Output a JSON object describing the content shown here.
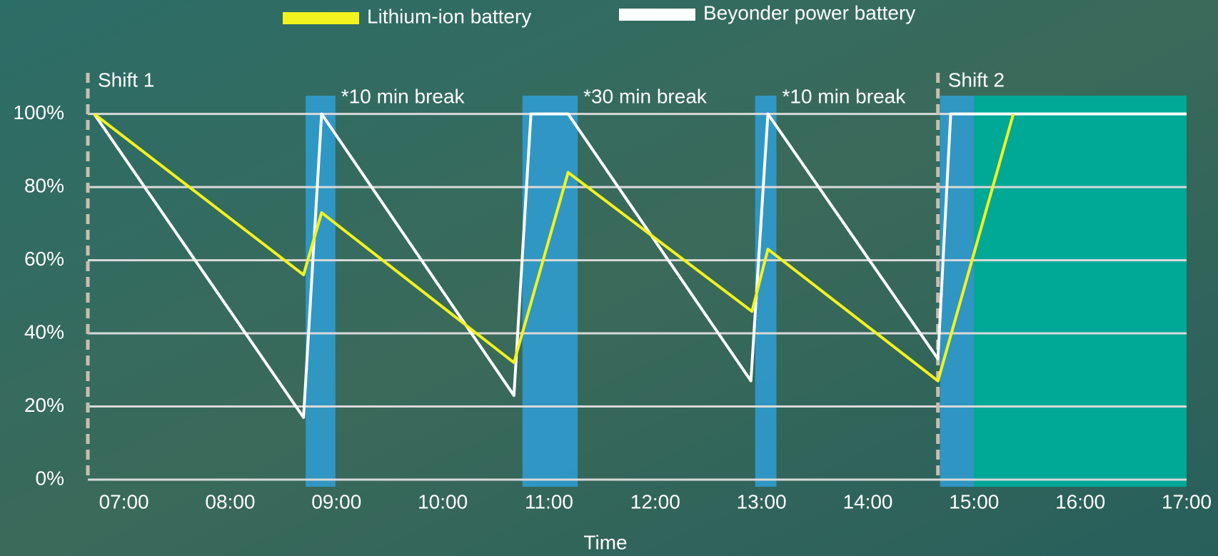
{
  "chart_data": {
    "type": "line",
    "xlabel": "Time",
    "xlim": [
      6.66,
      17
    ],
    "xticks": [
      {
        "value": 7,
        "label": "07:00"
      },
      {
        "value": 8,
        "label": "08:00"
      },
      {
        "value": 9,
        "label": "09:00"
      },
      {
        "value": 10,
        "label": "10:00"
      },
      {
        "value": 11,
        "label": "11:00"
      },
      {
        "value": 12,
        "label": "12:00"
      },
      {
        "value": 13,
        "label": "13:00"
      },
      {
        "value": 14,
        "label": "14:00"
      },
      {
        "value": 15,
        "label": "15:00"
      },
      {
        "value": 16,
        "label": "16:00"
      },
      {
        "value": 17,
        "label": "17:00"
      }
    ],
    "ylim": [
      0,
      105
    ],
    "yticks": [
      {
        "value": 0,
        "label": "0%"
      },
      {
        "value": 20,
        "label": "20%"
      },
      {
        "value": 40,
        "label": "40%"
      },
      {
        "value": 60,
        "label": "60%"
      },
      {
        "value": 80,
        "label": "80%"
      },
      {
        "value": 100,
        "label": "100%"
      }
    ],
    "grid": true,
    "series": [
      {
        "name": "Lithium-ion battery",
        "color": "#f2f21e",
        "x": [
          6.72,
          8.69,
          8.86,
          10.67,
          11.18,
          12.91,
          13.06,
          14.66,
          15.37
        ],
        "values": [
          100,
          56,
          73,
          32,
          84,
          46,
          63,
          27,
          100
        ]
      },
      {
        "name": "Beyonder power battery",
        "color": "#ffffff",
        "x": [
          6.72,
          8.69,
          8.86,
          10.67,
          10.83,
          11.18,
          12.9,
          13.06,
          14.66,
          14.78,
          17
        ],
        "values": [
          100,
          17,
          100,
          23,
          100,
          100,
          27,
          100,
          33,
          100,
          100
        ]
      }
    ],
    "breaks": [
      {
        "start": 8.71,
        "end": 8.99,
        "label": "*10 min break"
      },
      {
        "start": 10.75,
        "end": 11.27,
        "label": "*30 min break"
      },
      {
        "start": 12.94,
        "end": 13.14,
        "label": "*10 min break"
      },
      {
        "start": 14.68,
        "end": 15.0
      }
    ],
    "break_color": "#2f9fd6",
    "highlight": {
      "start": 15,
      "end": 17,
      "color": "#00a896"
    },
    "shifts": [
      {
        "x": 6.66,
        "label": "Shift 1"
      },
      {
        "x": 14.66,
        "label": "Shift 2"
      }
    ]
  }
}
